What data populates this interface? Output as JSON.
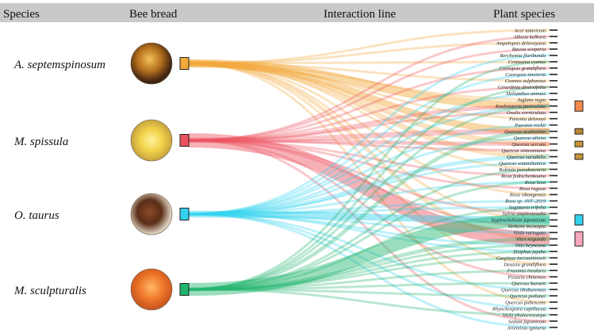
{
  "header": {
    "species": "Species",
    "bee_bread": "Bee bread",
    "interaction": "Interaction line",
    "plants": "Plant species"
  },
  "bees": [
    {
      "name": "A. septemspinosum",
      "color": "#F2A93A",
      "photo": "amber"
    },
    {
      "name": "M. spissula",
      "color": "#EC5360",
      "photo": "yellow"
    },
    {
      "name": "O. taurus",
      "color": "#33D2EE",
      "photo": "brown"
    },
    {
      "name": "M. sculpturalis",
      "color": "#22B56E",
      "photo": "orange"
    }
  ],
  "plants": [
    {
      "name": "Acer tataricum",
      "color": "#3a3a3a",
      "box": false
    },
    {
      "name": "Albizia kalkora",
      "color": "#3a3a3a",
      "box": false
    },
    {
      "name": "Ampelopsis delavayana",
      "color": "#3a3a3a",
      "box": false
    },
    {
      "name": "Bassia scoparia",
      "color": "#3a3a3a",
      "box": false
    },
    {
      "name": "Berchemia floribunda",
      "color": "#3a3a3a",
      "box": false
    },
    {
      "name": "Centaurea cyanus",
      "color": "#3a3a3a",
      "box": false
    },
    {
      "name": "Coreopsis grandiflora",
      "color": "#3a3a3a",
      "box": false
    },
    {
      "name": "Coreopsis tinctoria",
      "color": "#3a3a3a",
      "box": false
    },
    {
      "name": "Cosmos sulphureus",
      "color": "#3a3a3a",
      "box": false
    },
    {
      "name": "Girardinia diversifolia",
      "color": "#3a3a3a",
      "box": false
    },
    {
      "name": "Helianthus annuus",
      "color": "#3a3a3a",
      "box": false
    },
    {
      "name": "Juglans regia",
      "color": "#3a3a3a",
      "box": false
    },
    {
      "name": "Koelreuteria paniculata",
      "color": "#F28A4A",
      "box": true
    },
    {
      "name": "Oxalis corniculata",
      "color": "#3a3a3a",
      "box": false
    },
    {
      "name": "Paeonia delavayi",
      "color": "#3a3a3a",
      "box": false
    },
    {
      "name": "Paeonia rockii",
      "color": "#3a3a3a",
      "box": false
    },
    {
      "name": "Quercus acutissima",
      "color": "#B8862F",
      "box": true
    },
    {
      "name": "Quercus aliena",
      "color": "#3a3a3a",
      "box": false
    },
    {
      "name": "Quercus serrata",
      "color": "#C9923A",
      "box": true
    },
    {
      "name": "Quercus sintenisiana",
      "color": "#3a3a3a",
      "box": false
    },
    {
      "name": "Quercus variabilis",
      "color": "#C9923A",
      "box": true
    },
    {
      "name": "Quercus wutaishanica",
      "color": "#3a3a3a",
      "box": false
    },
    {
      "name": "Robinia pseudoacacia",
      "color": "#3a3a3a",
      "box": false
    },
    {
      "name": "Rosa fedtschenkoana",
      "color": "#3a3a3a",
      "box": false
    },
    {
      "name": "Rosa laxa",
      "color": "#3a3a3a",
      "box": false
    },
    {
      "name": "Rosa rugosa",
      "color": "#3a3a3a",
      "box": false
    },
    {
      "name": "Rosa sikangensis",
      "color": "#3a3a3a",
      "box": false
    },
    {
      "name": "Rosa sp. AVF-2019",
      "color": "#3a3a3a",
      "box": false
    },
    {
      "name": "Sagittaria trifolia",
      "color": "#3a3a3a",
      "box": false
    },
    {
      "name": "Salvia amplexicaulis",
      "color": "#3a3a3a",
      "box": false
    },
    {
      "name": "Styphnolobium japonicum",
      "color": "#33D2EE",
      "box": true
    },
    {
      "name": "Verbena incompta",
      "color": "#3a3a3a",
      "box": false
    },
    {
      "name": "Viola variegata",
      "color": "#3a3a3a",
      "box": false
    },
    {
      "name": "Vitex negundo",
      "color": "#F7A7BE",
      "box": true
    },
    {
      "name": "Vitis heyneana",
      "color": "#3a3a3a",
      "box": false
    },
    {
      "name": "Ziziphus jujuba",
      "color": "#3a3a3a",
      "box": false
    },
    {
      "name": "Carpinus turczaninowii",
      "color": "#3a3a3a",
      "box": false
    },
    {
      "name": "Deutzia grandiflora",
      "color": "#3a3a3a",
      "box": false
    },
    {
      "name": "Fraxinus insularis",
      "color": "#3a3a3a",
      "box": false
    },
    {
      "name": "Pistacia chinensis",
      "color": "#3a3a3a",
      "box": false
    },
    {
      "name": "Quercus baronii",
      "color": "#3a3a3a",
      "box": false
    },
    {
      "name": "Quercus ithaburensis",
      "color": "#3a3a3a",
      "box": false
    },
    {
      "name": "Quercus poilanei",
      "color": "#3a3a3a",
      "box": false
    },
    {
      "name": "Quercus pubescens",
      "color": "#3a3a3a",
      "box": false
    },
    {
      "name": "Rhynchospora capillacea",
      "color": "#3a3a3a",
      "box": false
    },
    {
      "name": "Viola phalacrocarpa",
      "color": "#3a3a3a",
      "box": false
    },
    {
      "name": "Sedum japonicum",
      "color": "#3a3a3a",
      "box": false
    },
    {
      "name": "Artemisia igniaria",
      "color": "#3a3a3a",
      "box": false
    }
  ],
  "links": [
    {
      "bee": 0,
      "plant": 12,
      "weight": 5
    },
    {
      "bee": 0,
      "plant": 16,
      "weight": 4
    },
    {
      "bee": 0,
      "plant": 18,
      "weight": 3
    },
    {
      "bee": 0,
      "plant": 20,
      "weight": 3
    },
    {
      "bee": 0,
      "plant": 0,
      "weight": 1
    },
    {
      "bee": 0,
      "plant": 2,
      "weight": 1
    },
    {
      "bee": 0,
      "plant": 5,
      "weight": 1
    },
    {
      "bee": 0,
      "plant": 8,
      "weight": 1
    },
    {
      "bee": 0,
      "plant": 11,
      "weight": 1
    },
    {
      "bee": 0,
      "plant": 14,
      "weight": 1
    },
    {
      "bee": 0,
      "plant": 22,
      "weight": 1
    },
    {
      "bee": 0,
      "plant": 26,
      "weight": 1
    },
    {
      "bee": 0,
      "plant": 30,
      "weight": 1
    },
    {
      "bee": 0,
      "plant": 33,
      "weight": 2
    },
    {
      "bee": 0,
      "plant": 37,
      "weight": 1
    },
    {
      "bee": 0,
      "plant": 43,
      "weight": 1
    },
    {
      "bee": 1,
      "plant": 33,
      "weight": 9
    },
    {
      "bee": 1,
      "plant": 16,
      "weight": 3
    },
    {
      "bee": 1,
      "plant": 18,
      "weight": 2
    },
    {
      "bee": 1,
      "plant": 12,
      "weight": 2
    },
    {
      "bee": 1,
      "plant": 1,
      "weight": 1
    },
    {
      "bee": 1,
      "plant": 3,
      "weight": 1
    },
    {
      "bee": 1,
      "plant": 6,
      "weight": 1
    },
    {
      "bee": 1,
      "plant": 9,
      "weight": 1
    },
    {
      "bee": 1,
      "plant": 13,
      "weight": 1
    },
    {
      "bee": 1,
      "plant": 19,
      "weight": 1
    },
    {
      "bee": 1,
      "plant": 23,
      "weight": 1
    },
    {
      "bee": 1,
      "plant": 25,
      "weight": 1
    },
    {
      "bee": 1,
      "plant": 29,
      "weight": 1
    },
    {
      "bee": 1,
      "plant": 31,
      "weight": 1
    },
    {
      "bee": 1,
      "plant": 39,
      "weight": 1
    },
    {
      "bee": 1,
      "plant": 46,
      "weight": 1
    },
    {
      "bee": 2,
      "plant": 30,
      "weight": 4
    },
    {
      "bee": 2,
      "plant": 20,
      "weight": 2
    },
    {
      "bee": 2,
      "plant": 12,
      "weight": 1
    },
    {
      "bee": 2,
      "plant": 4,
      "weight": 1
    },
    {
      "bee": 2,
      "plant": 7,
      "weight": 1
    },
    {
      "bee": 2,
      "plant": 10,
      "weight": 1
    },
    {
      "bee": 2,
      "plant": 15,
      "weight": 1
    },
    {
      "bee": 2,
      "plant": 17,
      "weight": 1
    },
    {
      "bee": 2,
      "plant": 21,
      "weight": 1
    },
    {
      "bee": 2,
      "plant": 24,
      "weight": 1
    },
    {
      "bee": 2,
      "plant": 27,
      "weight": 1
    },
    {
      "bee": 2,
      "plant": 28,
      "weight": 1
    },
    {
      "bee": 2,
      "plant": 32,
      "weight": 1
    },
    {
      "bee": 2,
      "plant": 34,
      "weight": 1
    },
    {
      "bee": 2,
      "plant": 35,
      "weight": 1
    },
    {
      "bee": 2,
      "plant": 41,
      "weight": 1
    },
    {
      "bee": 2,
      "plant": 44,
      "weight": 1
    },
    {
      "bee": 2,
      "plant": 47,
      "weight": 1
    },
    {
      "bee": 3,
      "plant": 30,
      "weight": 8
    },
    {
      "bee": 3,
      "plant": 16,
      "weight": 2
    },
    {
      "bee": 3,
      "plant": 33,
      "weight": 2
    },
    {
      "bee": 3,
      "plant": 12,
      "weight": 1
    },
    {
      "bee": 3,
      "plant": 36,
      "weight": 1
    },
    {
      "bee": 3,
      "plant": 38,
      "weight": 1
    },
    {
      "bee": 3,
      "plant": 40,
      "weight": 1
    },
    {
      "bee": 3,
      "plant": 42,
      "weight": 1
    },
    {
      "bee": 3,
      "plant": 45,
      "weight": 1
    },
    {
      "bee": 3,
      "plant": 22,
      "weight": 1
    },
    {
      "bee": 3,
      "plant": 24,
      "weight": 1
    },
    {
      "bee": 3,
      "plant": 28,
      "weight": 1
    },
    {
      "bee": 3,
      "plant": 34,
      "weight": 1
    },
    {
      "bee": 3,
      "plant": 35,
      "weight": 1
    },
    {
      "bee": 3,
      "plant": 5,
      "weight": 1
    },
    {
      "bee": 3,
      "plant": 9,
      "weight": 1
    }
  ]
}
